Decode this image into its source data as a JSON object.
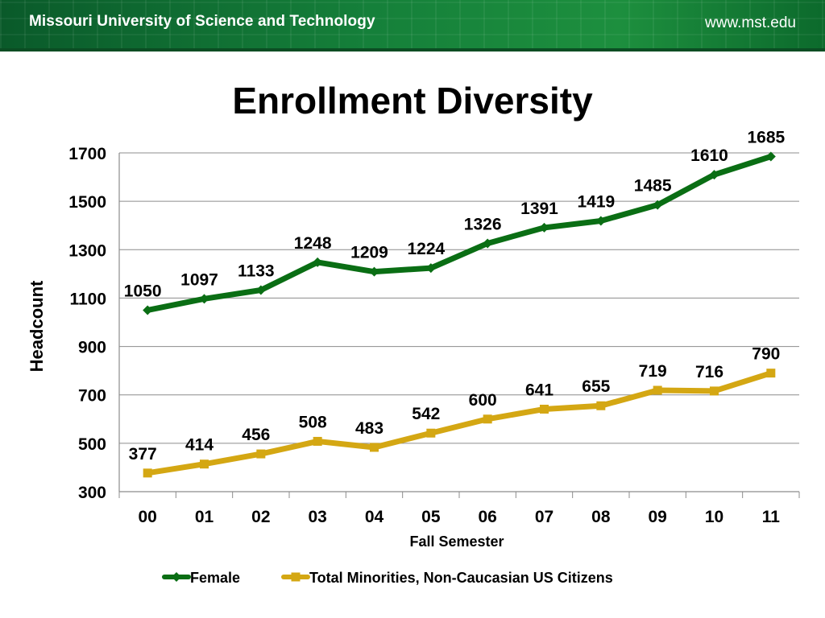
{
  "banner": {
    "title": "Missouri University of Science and Technology",
    "url": "www.mst.edu"
  },
  "colors": {
    "banner_green": "#15803a",
    "female": "#0a6e14",
    "minorities": "#d4a713"
  },
  "chart_data": {
    "type": "line",
    "title": "Enrollment Diversity",
    "xlabel": "Fall Semester",
    "ylabel": "Headcount",
    "categories": [
      "00",
      "01",
      "02",
      "03",
      "04",
      "05",
      "06",
      "07",
      "08",
      "09",
      "10",
      "11"
    ],
    "ylim": [
      300,
      1700
    ],
    "yticks": [
      300,
      500,
      700,
      900,
      1100,
      1300,
      1500,
      1700
    ],
    "grid": true,
    "legend": "bottom",
    "series": [
      {
        "name": "Female",
        "marker": "diamond",
        "values": [
          1050,
          1097,
          1133,
          1248,
          1209,
          1224,
          1326,
          1391,
          1419,
          1485,
          1610,
          1685
        ]
      },
      {
        "name": "Total Minorities, Non-Caucasian US Citizens",
        "marker": "square",
        "values": [
          377,
          414,
          456,
          508,
          483,
          542,
          600,
          641,
          655,
          719,
          716,
          790
        ]
      }
    ]
  }
}
